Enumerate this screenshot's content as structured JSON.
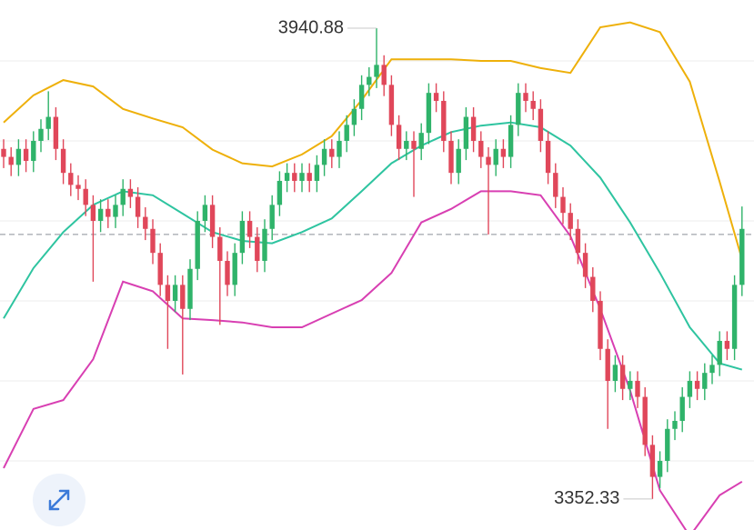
{
  "chart_data": {
    "type": "candlestick",
    "open": [
      3790,
      3780,
      3770,
      3790,
      3775,
      3800,
      3815,
      3830,
      3790,
      3760,
      3745,
      3740,
      3720,
      3700,
      3715,
      3705,
      3720,
      3740,
      3730,
      3705,
      3690,
      3660,
      3620,
      3600,
      3620,
      3590,
      3640,
      3700,
      3720,
      3680,
      3650,
      3620,
      3660,
      3700,
      3680,
      3650,
      3690,
      3720,
      3750,
      3760,
      3750,
      3760,
      3750,
      3770,
      3790,
      3780,
      3800,
      3820,
      3840,
      3870,
      3880,
      3895,
      3870,
      3820,
      3790,
      3800,
      3790,
      3810,
      3860,
      3850,
      3800,
      3760,
      3790,
      3830,
      3800,
      3780,
      3770,
      3790,
      3780,
      3820,
      3860,
      3850,
      3840,
      3800,
      3760,
      3730,
      3710,
      3690,
      3660,
      3630,
      3600,
      3540,
      3500,
      3520,
      3490,
      3500,
      3480,
      3420,
      3380,
      3400,
      3440,
      3450,
      3480,
      3500,
      3490,
      3510,
      3520,
      3550,
      3540,
      3620
    ],
    "high": [
      3802,
      3792,
      3802,
      3802,
      3812,
      3827,
      3862,
      3842,
      3802,
      3772,
      3757,
      3752,
      3732,
      3727,
      3727,
      3732,
      3752,
      3752,
      3742,
      3717,
      3702,
      3672,
      3632,
      3632,
      3632,
      3652,
      3712,
      3732,
      3732,
      3692,
      3662,
      3672,
      3712,
      3712,
      3692,
      3702,
      3732,
      3762,
      3772,
      3772,
      3772,
      3772,
      3782,
      3802,
      3802,
      3812,
      3832,
      3852,
      3882,
      3892,
      3940.88,
      3907,
      3882,
      3832,
      3812,
      3812,
      3822,
      3872,
      3872,
      3862,
      3812,
      3802,
      3842,
      3842,
      3812,
      3792,
      3802,
      3802,
      3832,
      3872,
      3872,
      3862,
      3852,
      3812,
      3772,
      3742,
      3722,
      3702,
      3672,
      3642,
      3612,
      3552,
      3532,
      3532,
      3512,
      3512,
      3492,
      3432,
      3412,
      3452,
      3462,
      3492,
      3512,
      3512,
      3522,
      3532,
      3562,
      3562,
      3632,
      3718
    ],
    "low": [
      3766,
      3756,
      3756,
      3761,
      3761,
      3786,
      3801,
      3776,
      3746,
      3731,
      3726,
      3706,
      3624,
      3686,
      3691,
      3691,
      3706,
      3716,
      3691,
      3676,
      3646,
      3606,
      3540,
      3586,
      3508,
      3576,
      3626,
      3686,
      3666,
      3570,
      3606,
      3606,
      3646,
      3666,
      3636,
      3636,
      3676,
      3706,
      3736,
      3736,
      3736,
      3736,
      3736,
      3756,
      3766,
      3766,
      3786,
      3806,
      3826,
      3856,
      3866,
      3856,
      3806,
      3776,
      3776,
      3730,
      3776,
      3796,
      3836,
      3786,
      3746,
      3746,
      3776,
      3786,
      3766,
      3683,
      3756,
      3766,
      3766,
      3806,
      3836,
      3826,
      3786,
      3746,
      3716,
      3696,
      3676,
      3646,
      3616,
      3586,
      3526,
      3440,
      3486,
      3476,
      3476,
      3466,
      3406,
      3352.33,
      3366,
      3386,
      3426,
      3436,
      3466,
      3476,
      3476,
      3496,
      3506,
      3526,
      3526,
      3606
    ],
    "close": [
      3780,
      3770,
      3790,
      3775,
      3800,
      3815,
      3830,
      3790,
      3760,
      3745,
      3740,
      3720,
      3700,
      3715,
      3705,
      3720,
      3740,
      3730,
      3705,
      3690,
      3660,
      3620,
      3600,
      3620,
      3590,
      3640,
      3700,
      3720,
      3680,
      3650,
      3620,
      3660,
      3700,
      3680,
      3650,
      3690,
      3720,
      3750,
      3760,
      3750,
      3760,
      3750,
      3770,
      3790,
      3780,
      3800,
      3820,
      3840,
      3870,
      3880,
      3895,
      3870,
      3820,
      3790,
      3800,
      3790,
      3810,
      3860,
      3850,
      3800,
      3760,
      3790,
      3830,
      3800,
      3780,
      3770,
      3790,
      3780,
      3820,
      3860,
      3850,
      3840,
      3800,
      3760,
      3730,
      3710,
      3690,
      3660,
      3630,
      3600,
      3540,
      3500,
      3520,
      3490,
      3500,
      3480,
      3420,
      3380,
      3400,
      3440,
      3450,
      3480,
      3500,
      3490,
      3510,
      3520,
      3550,
      3540,
      3620,
      3690
    ],
    "up_color": "#2fb36a",
    "down_color": "#e0475a",
    "bands": [
      {
        "color": "#eeb00a",
        "x": [
          0,
          4,
          8,
          12,
          16,
          20,
          24,
          28,
          32,
          36,
          40,
          44,
          48,
          52,
          56,
          60,
          64,
          68,
          72,
          76,
          80,
          84,
          88,
          92,
          96,
          99
        ],
        "values": [
          3823,
          3857,
          3876,
          3868,
          3840,
          3828,
          3817,
          3789,
          3772,
          3768,
          3783,
          3806,
          3851,
          3902,
          3902,
          3902,
          3900,
          3900,
          3891,
          3885,
          3942,
          3948,
          3936,
          3874,
          3749,
          3652
        ]
      },
      {
        "color": "#2ec4a0",
        "x": [
          0,
          4,
          8,
          12,
          16,
          20,
          24,
          28,
          32,
          36,
          40,
          44,
          48,
          52,
          56,
          60,
          64,
          68,
          72,
          76,
          80,
          84,
          88,
          92,
          96,
          99
        ],
        "values": [
          3578,
          3641,
          3686,
          3720,
          3737,
          3732,
          3709,
          3686,
          3675,
          3672,
          3686,
          3703,
          3737,
          3772,
          3794,
          3811,
          3819,
          3823,
          3817,
          3794,
          3754,
          3698,
          3635,
          3567,
          3522,
          3514
        ]
      },
      {
        "color": "#d83fb2",
        "x": [
          0,
          4,
          8,
          12,
          16,
          20,
          24,
          28,
          32,
          36,
          40,
          44,
          48,
          52,
          56,
          60,
          64,
          68,
          72,
          76,
          80,
          84,
          88,
          92,
          96,
          99
        ],
        "values": [
          3391,
          3465,
          3476,
          3527,
          3624,
          3612,
          3578,
          3576,
          3573,
          3567,
          3567,
          3584,
          3601,
          3635,
          3698,
          3715,
          3737,
          3737,
          3732,
          3681,
          3590,
          3488,
          3363,
          3306,
          3357,
          3374
        ]
      }
    ],
    "price_line": 3683,
    "gridlines": [
      3400,
      3500,
      3600,
      3700,
      3800,
      3900
    ],
    "ylim": [
      3313.6,
      3976.1
    ]
  }
}
